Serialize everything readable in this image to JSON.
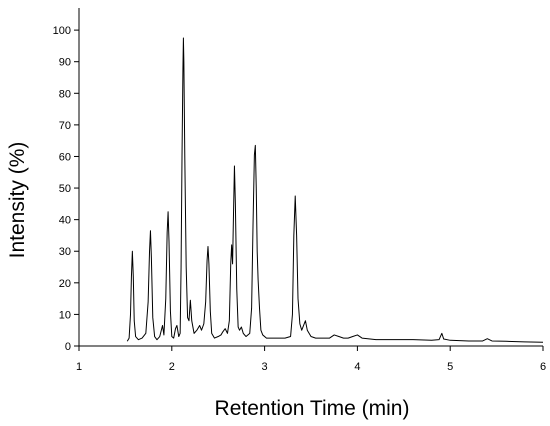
{
  "chart_data": {
    "type": "line",
    "title": "",
    "xlabel": "Retention Time (min)",
    "ylabel": "Intensity (%)",
    "xlim": [
      1,
      6
    ],
    "ylim": [
      0,
      107
    ],
    "xticks": [
      1,
      2,
      3,
      4,
      5,
      6
    ],
    "yticks": [
      0,
      10,
      20,
      30,
      40,
      50,
      60,
      70,
      80,
      90,
      100
    ],
    "grid": false,
    "legend": "none",
    "line_color": "#000000",
    "series": [
      {
        "points": [
          [
            1.52,
            1.5
          ],
          [
            1.54,
            2.5
          ],
          [
            1.555,
            10
          ],
          [
            1.565,
            22
          ],
          [
            1.575,
            30
          ],
          [
            1.585,
            22
          ],
          [
            1.595,
            8
          ],
          [
            1.61,
            3
          ],
          [
            1.64,
            2
          ],
          [
            1.68,
            2.5
          ],
          [
            1.72,
            4
          ],
          [
            1.745,
            14
          ],
          [
            1.76,
            30
          ],
          [
            1.77,
            36.5
          ],
          [
            1.78,
            28
          ],
          [
            1.795,
            9
          ],
          [
            1.815,
            3
          ],
          [
            1.84,
            2
          ],
          [
            1.87,
            3
          ],
          [
            1.9,
            6.5
          ],
          [
            1.915,
            3.5
          ],
          [
            1.935,
            15
          ],
          [
            1.95,
            36
          ],
          [
            1.96,
            42.5
          ],
          [
            1.97,
            33
          ],
          [
            1.985,
            11
          ],
          [
            2.0,
            3
          ],
          [
            2.02,
            2.5
          ],
          [
            2.04,
            5.5
          ],
          [
            2.055,
            6.5
          ],
          [
            2.075,
            3
          ],
          [
            2.09,
            4
          ],
          [
            2.1,
            25
          ],
          [
            2.11,
            60
          ],
          [
            2.12,
            88
          ],
          [
            2.125,
            97.5
          ],
          [
            2.13,
            90
          ],
          [
            2.14,
            60
          ],
          [
            2.155,
            25
          ],
          [
            2.17,
            9
          ],
          [
            2.185,
            8
          ],
          [
            2.2,
            14.5
          ],
          [
            2.215,
            8
          ],
          [
            2.24,
            4
          ],
          [
            2.27,
            5
          ],
          [
            2.3,
            6.5
          ],
          [
            2.32,
            5
          ],
          [
            2.345,
            7
          ],
          [
            2.365,
            14
          ],
          [
            2.38,
            27
          ],
          [
            2.39,
            31.5
          ],
          [
            2.4,
            26
          ],
          [
            2.415,
            11
          ],
          [
            2.43,
            4
          ],
          [
            2.46,
            2.5
          ],
          [
            2.5,
            3
          ],
          [
            2.53,
            3.5
          ],
          [
            2.55,
            4.5
          ],
          [
            2.575,
            5.5
          ],
          [
            2.6,
            4
          ],
          [
            2.62,
            8
          ],
          [
            2.635,
            26
          ],
          [
            2.645,
            32
          ],
          [
            2.655,
            26
          ],
          [
            2.665,
            42
          ],
          [
            2.675,
            57
          ],
          [
            2.685,
            45
          ],
          [
            2.7,
            18
          ],
          [
            2.715,
            6
          ],
          [
            2.73,
            5
          ],
          [
            2.75,
            6
          ],
          [
            2.77,
            4
          ],
          [
            2.8,
            3
          ],
          [
            2.84,
            4
          ],
          [
            2.86,
            12
          ],
          [
            2.875,
            38
          ],
          [
            2.89,
            60.5
          ],
          [
            2.9,
            63.5
          ],
          [
            2.91,
            50
          ],
          [
            2.92,
            30
          ],
          [
            2.93,
            21
          ],
          [
            2.945,
            12
          ],
          [
            2.96,
            5
          ],
          [
            2.98,
            3.5
          ],
          [
            3.02,
            2.5
          ],
          [
            3.08,
            2.5
          ],
          [
            3.15,
            2.5
          ],
          [
            3.22,
            2.5
          ],
          [
            3.28,
            3
          ],
          [
            3.3,
            10
          ],
          [
            3.315,
            35
          ],
          [
            3.33,
            47.5
          ],
          [
            3.345,
            35
          ],
          [
            3.36,
            15
          ],
          [
            3.38,
            7
          ],
          [
            3.4,
            5
          ],
          [
            3.42,
            6.5
          ],
          [
            3.44,
            8
          ],
          [
            3.46,
            5
          ],
          [
            3.5,
            3
          ],
          [
            3.55,
            2.5
          ],
          [
            3.62,
            2.5
          ],
          [
            3.7,
            2.5
          ],
          [
            3.75,
            3.5
          ],
          [
            3.8,
            3
          ],
          [
            3.85,
            2.5
          ],
          [
            3.9,
            2.5
          ],
          [
            3.95,
            3
          ],
          [
            4.0,
            3.5
          ],
          [
            4.05,
            2.5
          ],
          [
            4.2,
            2
          ],
          [
            4.4,
            2
          ],
          [
            4.6,
            2
          ],
          [
            4.8,
            1.8
          ],
          [
            4.88,
            2
          ],
          [
            4.91,
            4
          ],
          [
            4.93,
            2.2
          ],
          [
            5.0,
            1.8
          ],
          [
            5.2,
            1.6
          ],
          [
            5.35,
            1.6
          ],
          [
            5.4,
            2.3
          ],
          [
            5.45,
            1.6
          ],
          [
            5.6,
            1.5
          ],
          [
            5.8,
            1.3
          ],
          [
            6.0,
            1.2
          ]
        ]
      }
    ]
  }
}
